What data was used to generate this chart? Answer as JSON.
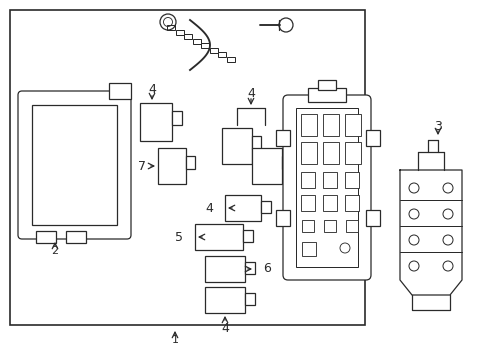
{
  "bg_color": "#ffffff",
  "line_color": "#2a2a2a",
  "fig_width": 4.89,
  "fig_height": 3.6,
  "dpi": 100
}
